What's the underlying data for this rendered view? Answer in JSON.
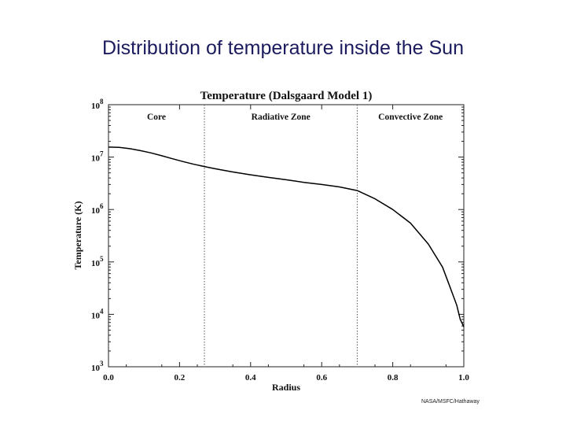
{
  "slide": {
    "title": "Distribution of temperature inside the Sun",
    "credit": "NASA/MSFC/Hathaway"
  },
  "chart_data": {
    "type": "line",
    "title": "Temperature (Dalsgaard Model 1)",
    "xlabel": "Radius",
    "ylabel": "Temperature (K)",
    "xlim": [
      0.0,
      1.0
    ],
    "ylim_log10": [
      3,
      8
    ],
    "yscale": "log",
    "x_ticks": [
      "0.0",
      "0.2",
      "0.4",
      "0.6",
      "0.8",
      "1.0"
    ],
    "y_ticks": [
      {
        "base": "10",
        "exp": "3"
      },
      {
        "base": "10",
        "exp": "4"
      },
      {
        "base": "10",
        "exp": "5"
      },
      {
        "base": "10",
        "exp": "6"
      },
      {
        "base": "10",
        "exp": "7"
      },
      {
        "base": "10",
        "exp": "8"
      }
    ],
    "zones": [
      {
        "name": "Core",
        "from": 0.0,
        "to": 0.27
      },
      {
        "name": "Radiative Zone",
        "from": 0.27,
        "to": 0.7
      },
      {
        "name": "Convective Zone",
        "from": 0.7,
        "to": 1.0
      }
    ],
    "boundaries": [
      0.27,
      0.7
    ],
    "series": [
      {
        "x": [
          0.0,
          0.03,
          0.06,
          0.09,
          0.12,
          0.15,
          0.18,
          0.21,
          0.24,
          0.27,
          0.3,
          0.35,
          0.4,
          0.45,
          0.5,
          0.55,
          0.6,
          0.65,
          0.7,
          0.75,
          0.8,
          0.85,
          0.9,
          0.94,
          0.96,
          0.98,
          0.99,
          1.0
        ],
        "y": [
          15500000.0,
          15300000.0,
          14500000.0,
          13300000.0,
          12000000.0,
          10600000.0,
          9300000.0,
          8200000.0,
          7300000.0,
          6600000.0,
          6000000.0,
          5200000.0,
          4600000.0,
          4100000.0,
          3700000.0,
          3300000.0,
          3000000.0,
          2700000.0,
          2300000.0,
          1600000.0,
          1000000.0,
          550000.0,
          220000.0,
          80000.0,
          35000.0,
          15000.0,
          8000.0,
          5800.0
        ]
      }
    ]
  }
}
